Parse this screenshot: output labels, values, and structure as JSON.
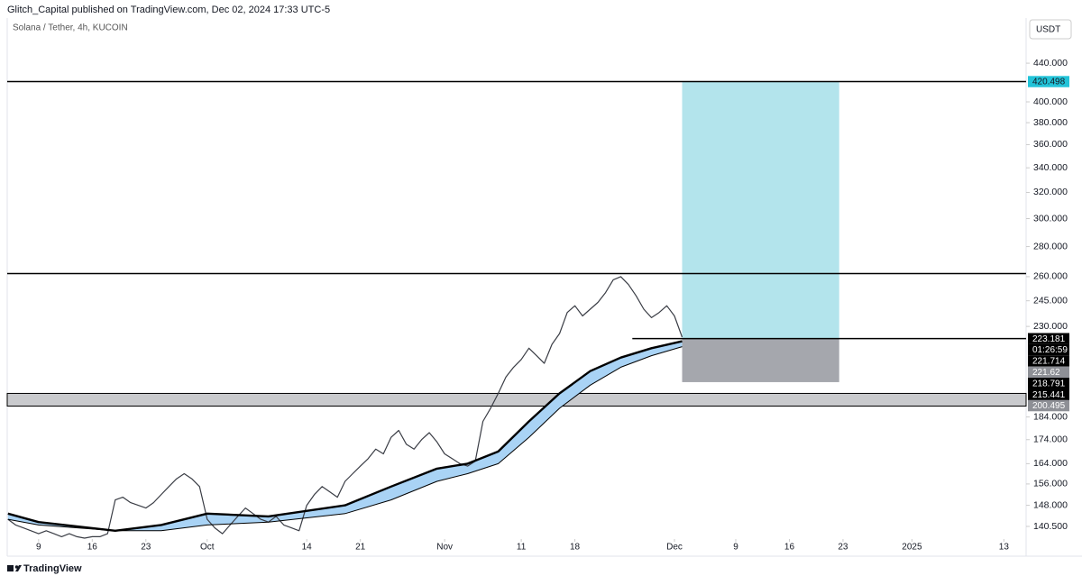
{
  "header": "Glitch_Capital published on TradingView.com, Dec 02, 2024 17:33 UTC-5",
  "symbol": "Solana / Tether, 4h, KUCOIN",
  "currency": "USDT",
  "brand": "TradingView",
  "chart_data": {
    "type": "line",
    "log_scale": true,
    "ylim": [
      136.2,
      491.8
    ],
    "yticks": [
      {
        "value": 440,
        "label": "440.000"
      },
      {
        "value": 400,
        "label": "400.000"
      },
      {
        "value": 380,
        "label": "380.000"
      },
      {
        "value": 360,
        "label": "360.000"
      },
      {
        "value": 340,
        "label": "340.000"
      },
      {
        "value": 320,
        "label": "320.000"
      },
      {
        "value": 300,
        "label": "300.000"
      },
      {
        "value": 280,
        "label": "280.000"
      },
      {
        "value": 260,
        "label": "260.000"
      },
      {
        "value": 245,
        "label": "245.000"
      },
      {
        "value": 230,
        "label": "230.000"
      },
      {
        "value": 184,
        "label": "184.000"
      },
      {
        "value": 174,
        "label": "174.000"
      },
      {
        "value": 164,
        "label": "164.000"
      },
      {
        "value": 156,
        "label": "156.000"
      },
      {
        "value": 148,
        "label": "148.000"
      },
      {
        "value": 140.5,
        "label": "140.500"
      }
    ],
    "xlim": [
      -4.1,
      128.9
    ],
    "xticks": [
      {
        "value": 0,
        "label": "9"
      },
      {
        "value": 7,
        "label": "16"
      },
      {
        "value": 14,
        "label": "23"
      },
      {
        "value": 22,
        "label": "Oct"
      },
      {
        "value": 35,
        "label": "14"
      },
      {
        "value": 42,
        "label": "21"
      },
      {
        "value": 53,
        "label": "Nov"
      },
      {
        "value": 63,
        "label": "11"
      },
      {
        "value": 70,
        "label": "18"
      },
      {
        "value": 83,
        "label": "Dec"
      },
      {
        "value": 91,
        "label": "9"
      },
      {
        "value": 98,
        "label": "16"
      },
      {
        "value": 105,
        "label": "23"
      },
      {
        "value": 114,
        "label": "2025"
      },
      {
        "value": 126,
        "label": "13"
      }
    ],
    "series": [
      {
        "color": "#3a3d45",
        "width": 1.2,
        "x": [
          -4,
          -3,
          -2,
          -1,
          0,
          1,
          2,
          3,
          4,
          5,
          6,
          7,
          8,
          9,
          10,
          11,
          12,
          13,
          14,
          15,
          16,
          17,
          18,
          19,
          20,
          21,
          22,
          23,
          24,
          25,
          26,
          27,
          28,
          29,
          30,
          31,
          32,
          33,
          34,
          35,
          36,
          37,
          38,
          39,
          40,
          41,
          42,
          43,
          44,
          45,
          46,
          47,
          48,
          49,
          50,
          51,
          52,
          53,
          54,
          55,
          56,
          57,
          58,
          59,
          60,
          61,
          62,
          63,
          64,
          65,
          66,
          67,
          68,
          69,
          70,
          71,
          72,
          73,
          74,
          75,
          76,
          77,
          78,
          79,
          80,
          81,
          82,
          83,
          84
        ],
        "values": [
          143,
          141,
          140,
          139,
          138,
          139,
          138,
          137,
          138,
          137,
          136.5,
          137,
          137,
          138,
          150,
          151,
          149,
          148,
          147,
          149,
          152,
          155,
          158,
          160,
          158,
          155,
          143,
          140,
          138,
          141,
          144,
          147,
          145,
          143,
          142,
          144,
          141,
          140,
          139,
          148,
          152,
          155,
          153,
          151,
          157,
          160,
          163,
          166,
          170,
          168,
          175,
          178,
          172,
          170,
          174,
          177,
          173,
          168,
          166,
          164,
          163,
          165,
          182,
          188,
          195,
          203,
          208,
          212,
          218,
          214,
          210,
          220,
          226,
          238,
          242,
          236,
          240,
          244,
          250,
          258,
          260,
          255,
          248,
          240,
          235,
          238,
          242,
          236,
          224
        ]
      },
      {
        "color": "#000000",
        "width": 2.4,
        "x": [
          -4,
          0,
          10,
          16,
          22,
          30,
          40,
          46,
          52,
          56,
          60,
          64,
          68,
          72,
          76,
          80,
          84
        ],
        "values": [
          145,
          142,
          139,
          141,
          145,
          144,
          148,
          155,
          162,
          164,
          169,
          182,
          195,
          206,
          213,
          218,
          221.714
        ]
      },
      {
        "color": "#000000",
        "width": 1,
        "x": [
          -4,
          0,
          10,
          16,
          22,
          30,
          40,
          46,
          52,
          56,
          60,
          64,
          68,
          72,
          76,
          80,
          84
        ],
        "values": [
          143,
          141,
          139,
          139,
          141,
          142,
          145,
          150,
          157,
          160,
          164,
          175,
          188,
          199,
          208,
          214,
          218.791
        ]
      }
    ],
    "band_color": "#a9d3f5",
    "levels": [
      420.498,
      262
    ],
    "zone": [
      189,
      195
    ],
    "entry_line": {
      "start": 77.5,
      "value": 223.181
    },
    "position": {
      "start": 84,
      "end": 104.5,
      "target": 420.498,
      "entry": 223.181,
      "stop": 200.495,
      "target_color": "#b3e4ec",
      "stop_color": "#a5a7ad"
    },
    "price_labels": [
      {
        "value": 420.498,
        "color": "#22c3d8",
        "text_color": "#131722"
      },
      {
        "value": 223.181,
        "color": "#000000",
        "text_color": "#ffffff"
      },
      {
        "value": 221.714,
        "color": "#000000",
        "text_color": "#ffffff"
      },
      {
        "value": 221.62,
        "color": "#8e9096",
        "text_color": "#ffffff"
      },
      {
        "value": 218.791,
        "color": "#000000",
        "text_color": "#ffffff"
      },
      {
        "value": 215.441,
        "color": "#000000",
        "text_color": "#ffffff"
      },
      {
        "value": 200.495,
        "color": "#8e9096",
        "text_color": "#ffffff"
      }
    ],
    "countdown": "01:26:59",
    "countdown_after": 1
  }
}
